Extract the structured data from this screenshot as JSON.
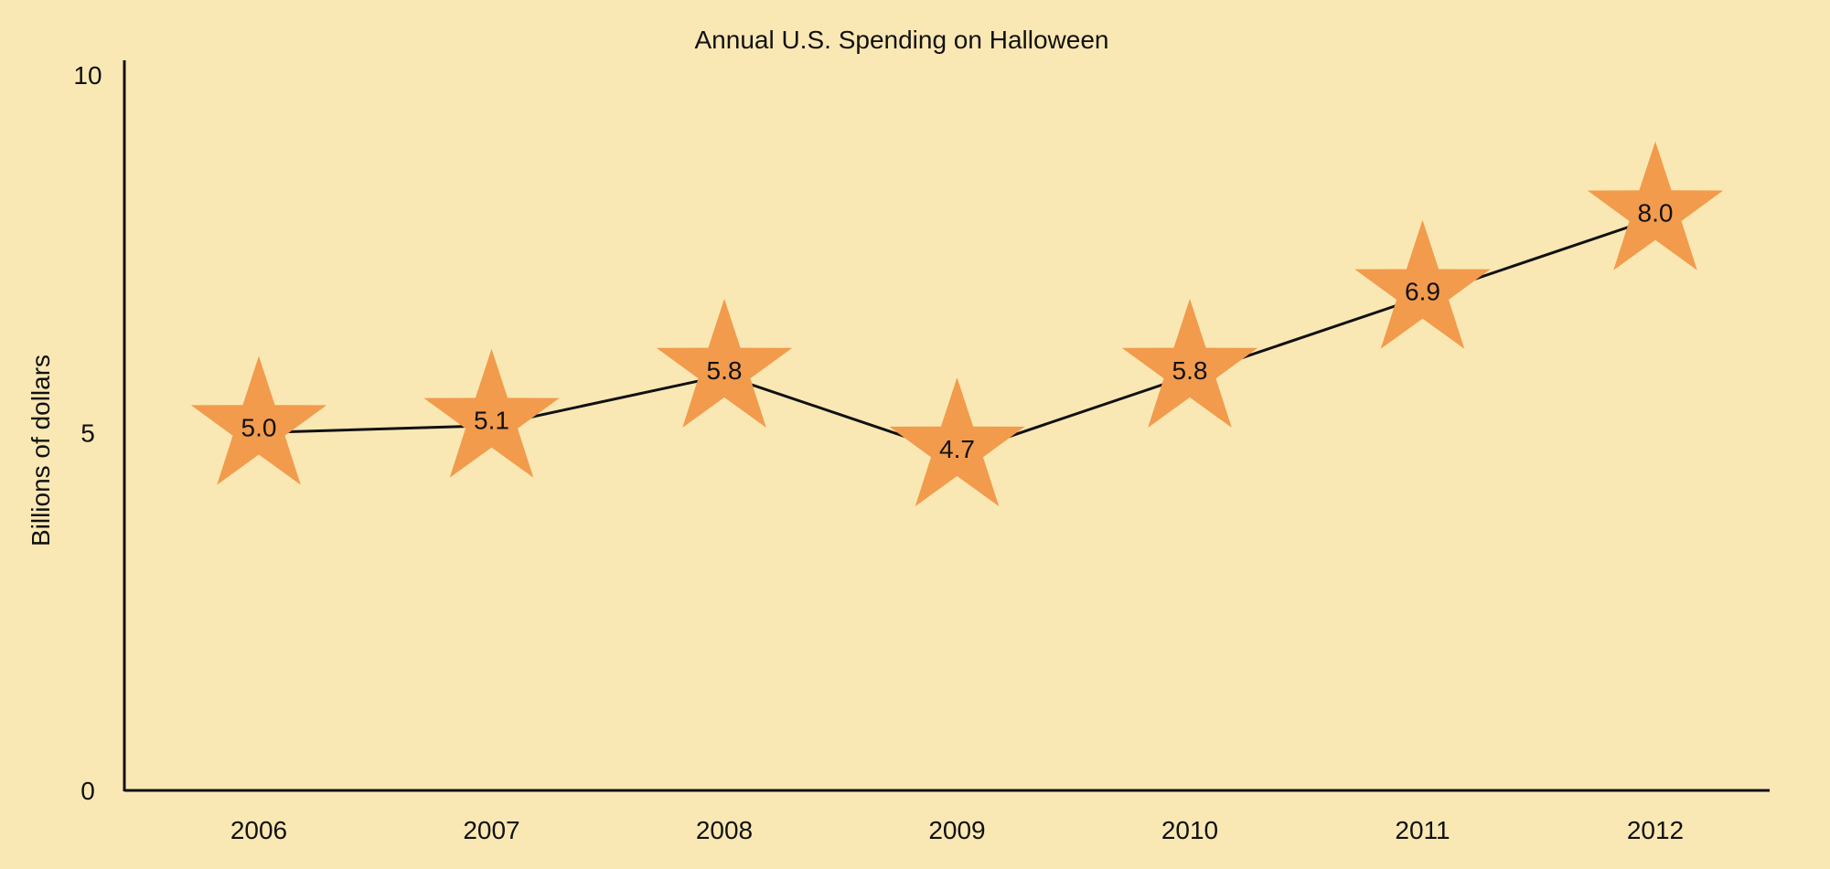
{
  "chart_data": {
    "type": "line",
    "title": "Annual U.S. Spending on Halloween",
    "xlabel": "",
    "ylabel": "Billions of dollars",
    "categories": [
      "2006",
      "2007",
      "2008",
      "2009",
      "2010",
      "2011",
      "2012"
    ],
    "series": [
      {
        "values": [
          5.0,
          5.1,
          5.8,
          4.7,
          5.8,
          6.9,
          8.0
        ],
        "labels": [
          "5.0",
          "5.1",
          "5.8",
          "4.7",
          "5.8",
          "6.9",
          "8.0"
        ],
        "marker": "star",
        "marker_color": "#f29b4c",
        "line_color": "#111111"
      }
    ],
    "ylim": [
      0,
      10
    ],
    "yticks": [
      0,
      5,
      10
    ],
    "ytick_labels": [
      "0",
      "5",
      "10"
    ],
    "grid": false,
    "legend": "none",
    "background_color": "#fae8b4"
  }
}
